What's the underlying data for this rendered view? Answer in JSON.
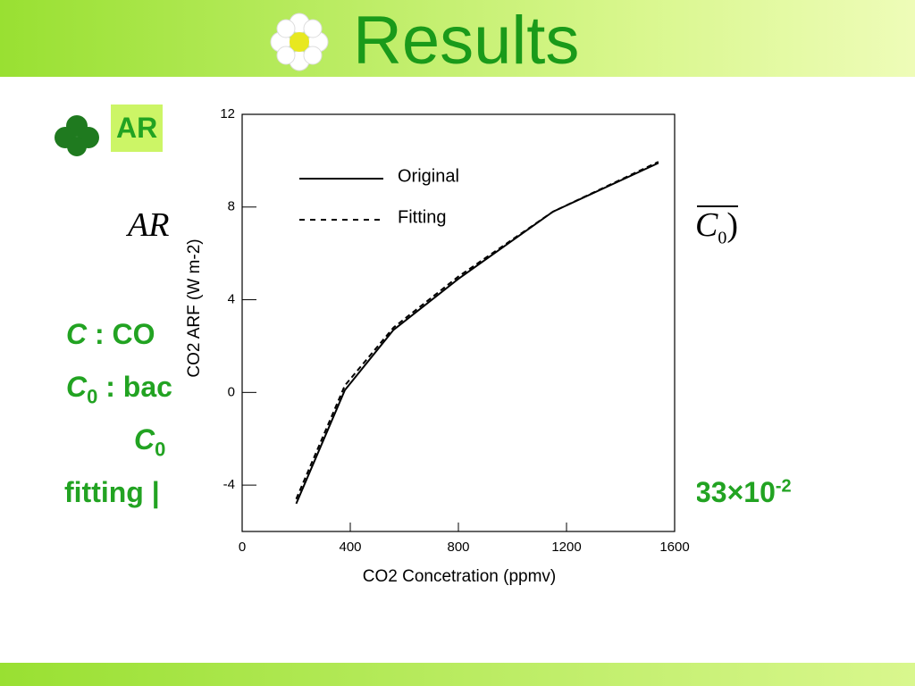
{
  "slide": {
    "title": "Results",
    "bullet": "AR",
    "formula": {
      "left": "AR",
      "symbol": "C",
      "sub": "0",
      "close": ")"
    },
    "lines": [
      {
        "symbol": "C",
        "text": ": CO"
      },
      {
        "symbol": "C",
        "sub": "0",
        "text": ": bac"
      },
      {
        "symbol": "C",
        "sub": "0"
      },
      {
        "text": "fitting |",
        "tail": "33×10",
        "sup": "-2"
      }
    ]
  },
  "chart_data": {
    "type": "line",
    "xlabel": "CO2 Concetration (ppmv)",
    "ylabel": "CO2 ARF (W m-2)",
    "xlim": [
      0,
      1600
    ],
    "xticks": [
      0,
      400,
      800,
      1200,
      1600
    ],
    "ylim": [
      -6,
      12
    ],
    "yticks": [
      -4,
      0,
      4,
      8,
      12
    ],
    "legend": "upper left",
    "series": [
      {
        "name": "Original",
        "color": "#000000",
        "dash": false,
        "x": [
          200,
          380,
          560,
          800,
          1150,
          1540
        ],
        "values": [
          -4.8,
          0.1,
          2.7,
          4.9,
          7.8,
          9.9
        ]
      },
      {
        "name": "Fitting",
        "color": "#000000",
        "dash": true,
        "x": [
          200,
          380,
          560,
          800,
          1150,
          1540
        ],
        "values": [
          -4.6,
          0.3,
          2.8,
          5.0,
          7.8,
          9.95
        ]
      }
    ]
  }
}
